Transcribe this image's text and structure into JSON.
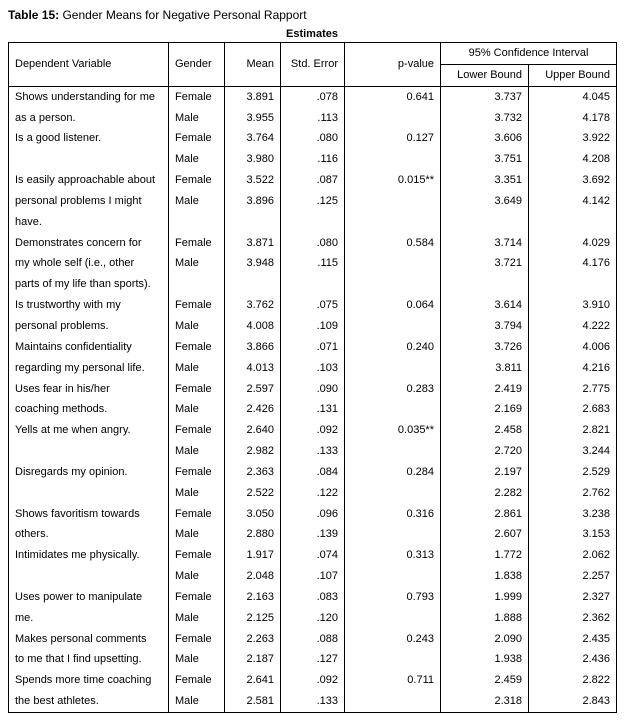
{
  "caption_label": "Table 15:",
  "caption_text": " Gender Means for Negative Personal Rapport",
  "super_header": "Estimates",
  "headers": {
    "dep": "Dependent Variable",
    "gender": "Gender",
    "mean": "Mean",
    "se": "Std. Error",
    "p": "p-value",
    "ci": "95% Confidence Interval",
    "lower": "Lower Bound",
    "upper": "Upper Bound"
  },
  "gender_labels": {
    "f": "Female",
    "m": "Male"
  },
  "rows": [
    {
      "dep": [
        "Shows understanding for me",
        "as a person."
      ],
      "f": {
        "mean": "3.891",
        "se": ".078",
        "p": "0.641",
        "low": "3.737",
        "up": "4.045"
      },
      "m": {
        "mean": "3.955",
        "se": ".113",
        "p": "",
        "low": "3.732",
        "up": "4.178"
      }
    },
    {
      "dep": [
        "Is a good listener."
      ],
      "f": {
        "mean": "3.764",
        "se": ".080",
        "p": "0.127",
        "low": "3.606",
        "up": "3.922"
      },
      "m": {
        "mean": "3.980",
        "se": ".116",
        "p": "",
        "low": "3.751",
        "up": "4.208"
      }
    },
    {
      "dep": [
        "Is easily approachable about",
        "personal problems I might",
        "have."
      ],
      "f": {
        "mean": "3.522",
        "se": ".087",
        "p": "0.015**",
        "low": "3.351",
        "up": "3.692"
      },
      "m": {
        "mean": "3.896",
        "se": ".125",
        "p": "",
        "low": "3.649",
        "up": "4.142"
      }
    },
    {
      "dep": [
        "Demonstrates concern for",
        "my whole self (i.e., other",
        "parts of my life than sports)."
      ],
      "f": {
        "mean": "3.871",
        "se": ".080",
        "p": "0.584",
        "low": "3.714",
        "up": "4.029"
      },
      "m": {
        "mean": "3.948",
        "se": ".115",
        "p": "",
        "low": "3.721",
        "up": "4.176"
      }
    },
    {
      "dep": [
        "Is trustworthy with my",
        "personal problems."
      ],
      "f": {
        "mean": "3.762",
        "se": ".075",
        "p": "0.064",
        "low": "3.614",
        "up": "3.910"
      },
      "m": {
        "mean": "4.008",
        "se": ".109",
        "p": "",
        "low": "3.794",
        "up": "4.222"
      }
    },
    {
      "dep": [
        "Maintains confidentiality",
        "regarding my personal life."
      ],
      "f": {
        "mean": "3.866",
        "se": ".071",
        "p": "0.240",
        "low": "3.726",
        "up": "4.006"
      },
      "m": {
        "mean": "4.013",
        "se": ".103",
        "p": "",
        "low": "3.811",
        "up": "4.216"
      }
    },
    {
      "dep": [
        "Uses fear in his/her",
        "coaching methods."
      ],
      "f": {
        "mean": "2.597",
        "se": ".090",
        "p": "0.283",
        "low": "2.419",
        "up": "2.775"
      },
      "m": {
        "mean": "2.426",
        "se": ".131",
        "p": "",
        "low": "2.169",
        "up": "2.683"
      }
    },
    {
      "dep": [
        "Yells at me when angry."
      ],
      "f": {
        "mean": "2.640",
        "se": ".092",
        "p": "0.035**",
        "low": "2.458",
        "up": "2.821"
      },
      "m": {
        "mean": "2.982",
        "se": ".133",
        "p": "",
        "low": "2.720",
        "up": "3.244"
      }
    },
    {
      "dep": [
        "Disregards my opinion."
      ],
      "f": {
        "mean": "2.363",
        "se": ".084",
        "p": "0.284",
        "low": "2.197",
        "up": "2.529"
      },
      "m": {
        "mean": "2.522",
        "se": ".122",
        "p": "",
        "low": "2.282",
        "up": "2.762"
      }
    },
    {
      "dep": [
        "Shows favoritism towards",
        "others."
      ],
      "f": {
        "mean": "3.050",
        "se": ".096",
        "p": "0.316",
        "low": "2.861",
        "up": "3.238"
      },
      "m": {
        "mean": "2.880",
        "se": ".139",
        "p": "",
        "low": "2.607",
        "up": "3.153"
      }
    },
    {
      "dep": [
        "Intimidates me physically."
      ],
      "f": {
        "mean": "1.917",
        "se": ".074",
        "p": "0.313",
        "low": "1.772",
        "up": "2.062"
      },
      "m": {
        "mean": "2.048",
        "se": ".107",
        "p": "",
        "low": "1.838",
        "up": "2.257"
      }
    },
    {
      "dep": [
        "Uses power to manipulate",
        "me."
      ],
      "f": {
        "mean": "2.163",
        "se": ".083",
        "p": "0.793",
        "low": "1.999",
        "up": "2.327"
      },
      "m": {
        "mean": "2.125",
        "se": ".120",
        "p": "",
        "low": "1.888",
        "up": "2.362"
      }
    },
    {
      "dep": [
        "Makes personal comments",
        "to me that I find upsetting."
      ],
      "f": {
        "mean": "2.263",
        "se": ".088",
        "p": "0.243",
        "low": "2.090",
        "up": "2.435"
      },
      "m": {
        "mean": "2.187",
        "se": ".127",
        "p": "",
        "low": "1.938",
        "up": "2.436"
      }
    },
    {
      "dep": [
        "Spends more time coaching",
        "the best athletes."
      ],
      "f": {
        "mean": "2.641",
        "se": ".092",
        "p": "0.711",
        "low": "2.459",
        "up": "2.822"
      },
      "m": {
        "mean": "2.581",
        "se": ".133",
        "p": "",
        "low": "2.318",
        "up": "2.843"
      }
    }
  ],
  "style": {
    "font_family": "Arial, sans-serif",
    "font_size_pt": 8,
    "border_color": "#000000",
    "background": "#ffffff"
  }
}
